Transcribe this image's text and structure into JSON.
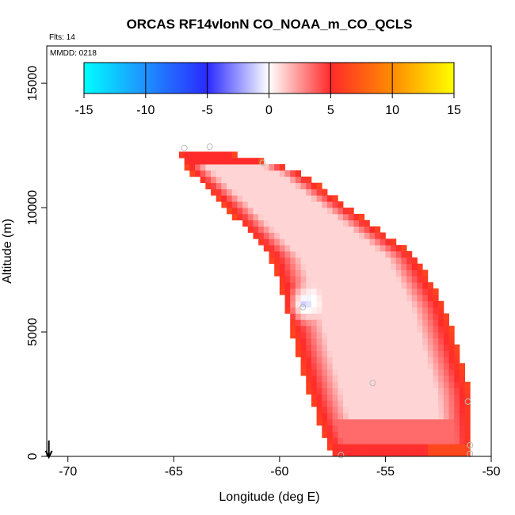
{
  "chart_data": {
    "type": "heatmap",
    "title": "ORCAS RF14vlonN CO_NOAA_m_CO_QCLS",
    "flights_note": "Flts: 14",
    "date_note": "MMDD: 0218",
    "xlabel": "Longitude (deg E)",
    "ylabel": "Altitude (m)",
    "xlim": [
      -71,
      -50
    ],
    "ylim": [
      0,
      16500
    ],
    "x_ticks": [
      -70,
      -65,
      -60,
      -55,
      -50
    ],
    "x_tick_labels": [
      "-70",
      "-65",
      "-60",
      "-55",
      "-50"
    ],
    "y_ticks": [
      0,
      5000,
      10000,
      15000
    ],
    "y_tick_labels": [
      "0",
      "5000",
      "10000",
      "15000"
    ],
    "colorbar": {
      "range": [
        -15,
        15
      ],
      "ticks": [
        -15,
        -10,
        -5,
        0,
        5,
        10,
        15
      ],
      "tick_labels": [
        "-15",
        "-10",
        "-5",
        "0",
        "5",
        "10",
        "15"
      ],
      "stops": [
        {
          "v": -15,
          "color": "#00ffff"
        },
        {
          "v": -10,
          "color": "#1e90ff"
        },
        {
          "v": -5,
          "color": "#2a2aff"
        },
        {
          "v": 0,
          "color": "#ffffff"
        },
        {
          "v": 5,
          "color": "#ff2a2a"
        },
        {
          "v": 10,
          "color": "#ff8c00"
        },
        {
          "v": 15,
          "color": "#ffff00"
        }
      ]
    },
    "field": {
      "lon_step": 0.25,
      "alt_step": 250,
      "envelope": [
        {
          "alt": 0,
          "lon_min": -57.4,
          "lon_max": -51.0
        },
        {
          "alt": 1000,
          "lon_min": -57.9,
          "lon_max": -51.0
        },
        {
          "alt": 2500,
          "lon_min": -58.5,
          "lon_max": -51.1
        },
        {
          "alt": 4000,
          "lon_min": -59.0,
          "lon_max": -51.6
        },
        {
          "alt": 6000,
          "lon_min": -59.6,
          "lon_max": -52.3
        },
        {
          "alt": 8000,
          "lon_min": -60.3,
          "lon_max": -53.6
        },
        {
          "alt": 10000,
          "lon_min": -62.4,
          "lon_max": -56.8
        },
        {
          "alt": 11500,
          "lon_min": -64.2,
          "lon_max": -59.2
        },
        {
          "alt": 12300,
          "lon_min": -64.8,
          "lon_max": -63.0
        }
      ],
      "edge_value": 6,
      "core_value": 1,
      "low_band": {
        "alt_min": 300,
        "alt_max": 1300,
        "value": 3.5
      },
      "bottom_value": 6.5,
      "negative_patch": {
        "lon": -58.8,
        "alt": 6000,
        "value": -1.5
      }
    },
    "points": [
      {
        "lon": -64.5,
        "alt": 12400
      },
      {
        "lon": -63.3,
        "alt": 12450
      },
      {
        "lon": -60.8,
        "alt": 11800
      },
      {
        "lon": -58.9,
        "alt": 6000
      },
      {
        "lon": -55.6,
        "alt": 2950
      },
      {
        "lon": -51.1,
        "alt": 2200
      },
      {
        "lon": -51.0,
        "alt": 450
      },
      {
        "lon": -51.0,
        "alt": 100
      },
      {
        "lon": -57.1,
        "alt": 50
      }
    ],
    "arrow_lon": -70.9
  }
}
